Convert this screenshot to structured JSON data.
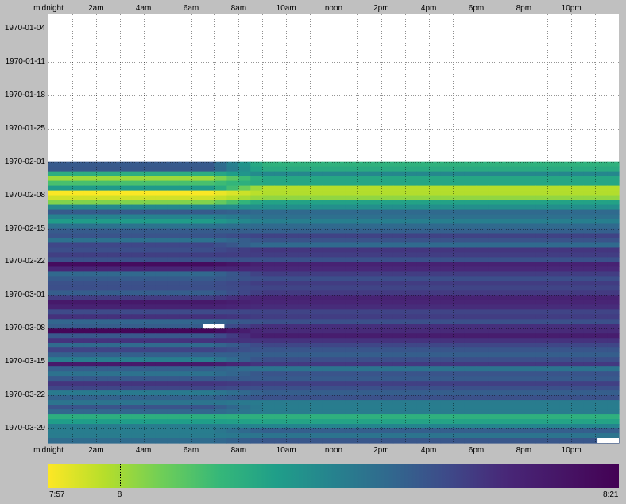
{
  "chart_data": {
    "type": "heatmap",
    "title": "",
    "xlabel": "",
    "ylabel": "",
    "x_tick_labels": [
      "midnight",
      "2am",
      "4am",
      "6am",
      "8am",
      "10am",
      "noon",
      "2pm",
      "4pm",
      "6pm",
      "8pm",
      "10pm"
    ],
    "x_tick_hours": [
      0,
      2,
      4,
      6,
      8,
      10,
      12,
      14,
      16,
      18,
      20,
      22
    ],
    "xlim_hours": [
      0,
      24
    ],
    "y_tick_labels": [
      "1970-01-04",
      "1970-01-11",
      "1970-01-18",
      "1970-01-25",
      "1970-02-01",
      "1970-02-08",
      "1970-02-15",
      "1970-02-22",
      "1970-03-01",
      "1970-03-08",
      "1970-03-15",
      "1970-03-22",
      "1970-03-29"
    ],
    "ylim_dates": [
      "1970-01-01",
      "1970-04-01"
    ],
    "data_start_date": "1970-02-01",
    "data_end_date": "1970-03-31",
    "value_unit": "minutes after 7:00",
    "colorbar": {
      "min_label": "7:57",
      "mid_label": "8",
      "max_label": "8:21",
      "min": 57,
      "mid": 60,
      "max": 81,
      "colormap": "viridis (reversed: yellow = low, purple = high)"
    },
    "daily_night_values": [
      72.5,
      72.7,
      65.1,
      60.2,
      63.4,
      66.9,
      57.1,
      58.5,
      61.2,
      68.4,
      72.4,
      69.0,
      66.8,
      70.4,
      72.4,
      73.0,
      70.6,
      74.0,
      73.5,
      74.6,
      73.2,
      79.6,
      76.4,
      71.3,
      72.4,
      73.2,
      73.4,
      72.2,
      74.8,
      78.1,
      77.0,
      73.8,
      75.6,
      71.6,
      72.3,
      80.4,
      72.7,
      75.5,
      71.1,
      74.2,
      72.0,
      69.4,
      78.0,
      72.1,
      70.5,
      72.6,
      75.3,
      74.1,
      69.7,
      71.8,
      70.3,
      73.0,
      71.5,
      65.1,
      66.6,
      69.5,
      69.5,
      69.6,
      71.0
    ],
    "daily_day_values": [
      64.8,
      65.4,
      68.6,
      65.8,
      65.8,
      59.4,
      59.5,
      60.6,
      66.2,
      67.9,
      71.2,
      70.7,
      69.3,
      71.2,
      72.0,
      74.3,
      73.1,
      71.2,
      75.2,
      74.7,
      73.3,
      76.9,
      76.1,
      74.7,
      73.5,
      74.8,
      74.2,
      74.9,
      76.9,
      76.6,
      75.9,
      74.2,
      74.7,
      73.3,
      75.7,
      76.0,
      77.6,
      75.4,
      74.1,
      72.9,
      72.2,
      73.4,
      75.0,
      70.4,
      73.0,
      72.5,
      74.5,
      73.3,
      72.2,
      73.2,
      69.6,
      69.5,
      69.6,
      64.9,
      66.1,
      68.8,
      72.1,
      70.3,
      72.8
    ],
    "day_transition_hours": [
      6.8,
      9.0
    ],
    "missing_cells": [
      {
        "date": "1970-03-07",
        "hour_start": 6.5,
        "hour_end": 7.4
      },
      {
        "date": "1970-03-31",
        "hour_start": 23.1,
        "hour_end": 24.0
      }
    ]
  }
}
